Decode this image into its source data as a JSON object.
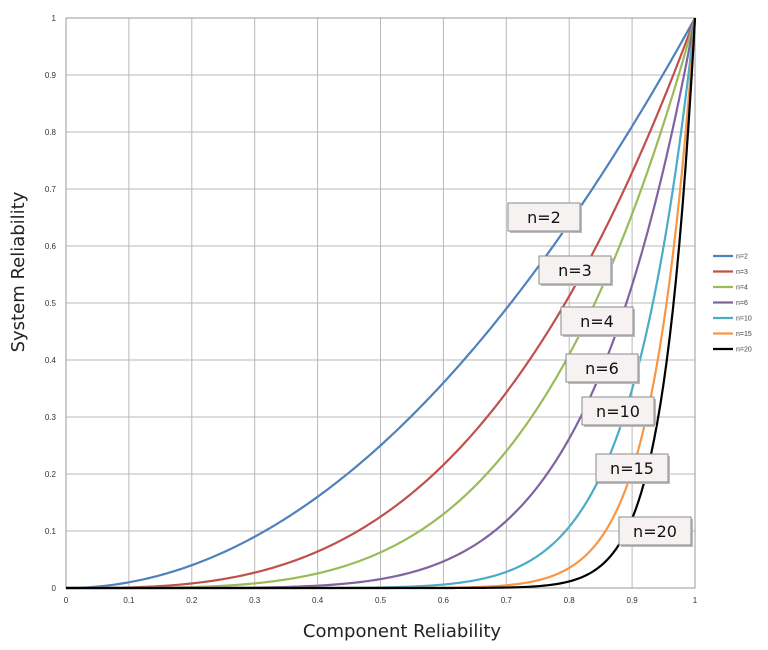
{
  "chart_data": {
    "type": "line",
    "title": "",
    "xlabel": "Component Reliability",
    "ylabel": "System Reliability",
    "xlim": [
      0,
      1
    ],
    "ylim": [
      0,
      1
    ],
    "grid": true,
    "legend_position": "right",
    "x_ticks": [
      "0",
      "0.1",
      "0.2",
      "0.3",
      "0.4",
      "0.5",
      "0.6",
      "0.7",
      "0.8",
      "0.9",
      "1"
    ],
    "y_ticks": [
      "0",
      "0.1",
      "0.2",
      "0.3",
      "0.4",
      "0.5",
      "0.6",
      "0.7",
      "0.8",
      "0.9",
      "1"
    ],
    "formula": "y = x^n",
    "series": [
      {
        "name": "n=2",
        "n": 2,
        "color": "#4f81bd",
        "callout": "n=2"
      },
      {
        "name": "n=3",
        "n": 3,
        "color": "#c0504d",
        "callout": "n=3"
      },
      {
        "name": "n=4",
        "n": 4,
        "color": "#9bbb59",
        "callout": "n=4"
      },
      {
        "name": "n=6",
        "n": 6,
        "color": "#8064a2",
        "callout": "n=6"
      },
      {
        "name": "n=10",
        "n": 10,
        "color": "#4bacc6",
        "callout": "n=10"
      },
      {
        "name": "n=15",
        "n": 15,
        "color": "#f79646",
        "callout": "n=15"
      },
      {
        "name": "n=20",
        "n": 20,
        "color": "#000000",
        "callout": "n=20"
      }
    ]
  }
}
